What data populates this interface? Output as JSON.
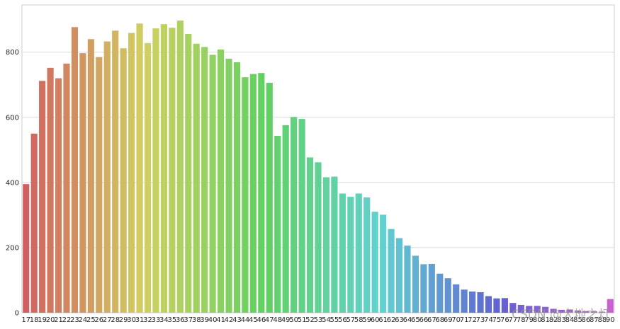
{
  "chart_data": {
    "type": "bar",
    "categories": [
      "17",
      "18",
      "19",
      "20",
      "21",
      "22",
      "23",
      "24",
      "25",
      "26",
      "27",
      "28",
      "29",
      "30",
      "31",
      "32",
      "33",
      "34",
      "35",
      "36",
      "37",
      "38",
      "39",
      "40",
      "41",
      "42",
      "43",
      "44",
      "45",
      "46",
      "47",
      "48",
      "49",
      "50",
      "51",
      "52",
      "53",
      "54",
      "55",
      "56",
      "57",
      "58",
      "59",
      "60",
      "61",
      "62",
      "63",
      "64",
      "65",
      "66",
      "67",
      "68",
      "69",
      "70",
      "71",
      "72",
      "73",
      "74",
      "75",
      "76",
      "77",
      "78",
      "79",
      "80",
      "81",
      "82",
      "83",
      "84",
      "85",
      "86",
      "87",
      "88",
      "90"
    ],
    "values": [
      395,
      550,
      712,
      752,
      720,
      765,
      877,
      797,
      840,
      785,
      833,
      866,
      812,
      859,
      888,
      828,
      873,
      886,
      875,
      897,
      856,
      826,
      816,
      792,
      808,
      780,
      769,
      723,
      733,
      736,
      706,
      543,
      576,
      601,
      595,
      477,
      462,
      416,
      418,
      366,
      356,
      366,
      354,
      310,
      301,
      257,
      229,
      206,
      175,
      149,
      150,
      120,
      106,
      87,
      71,
      65,
      63,
      51,
      44,
      45,
      30,
      24,
      21,
      21,
      18,
      12,
      9,
      10,
      7,
      5,
      4,
      3,
      42
    ],
    "title": "",
    "xlabel": "",
    "ylabel": "",
    "ylim": [
      0,
      945
    ],
    "yticks": [
      0,
      200,
      400,
      600,
      800
    ],
    "grid": true,
    "style": "seaborn-whitegrid-husl-palette"
  },
  "watermark": "CSDN @大地之灯"
}
